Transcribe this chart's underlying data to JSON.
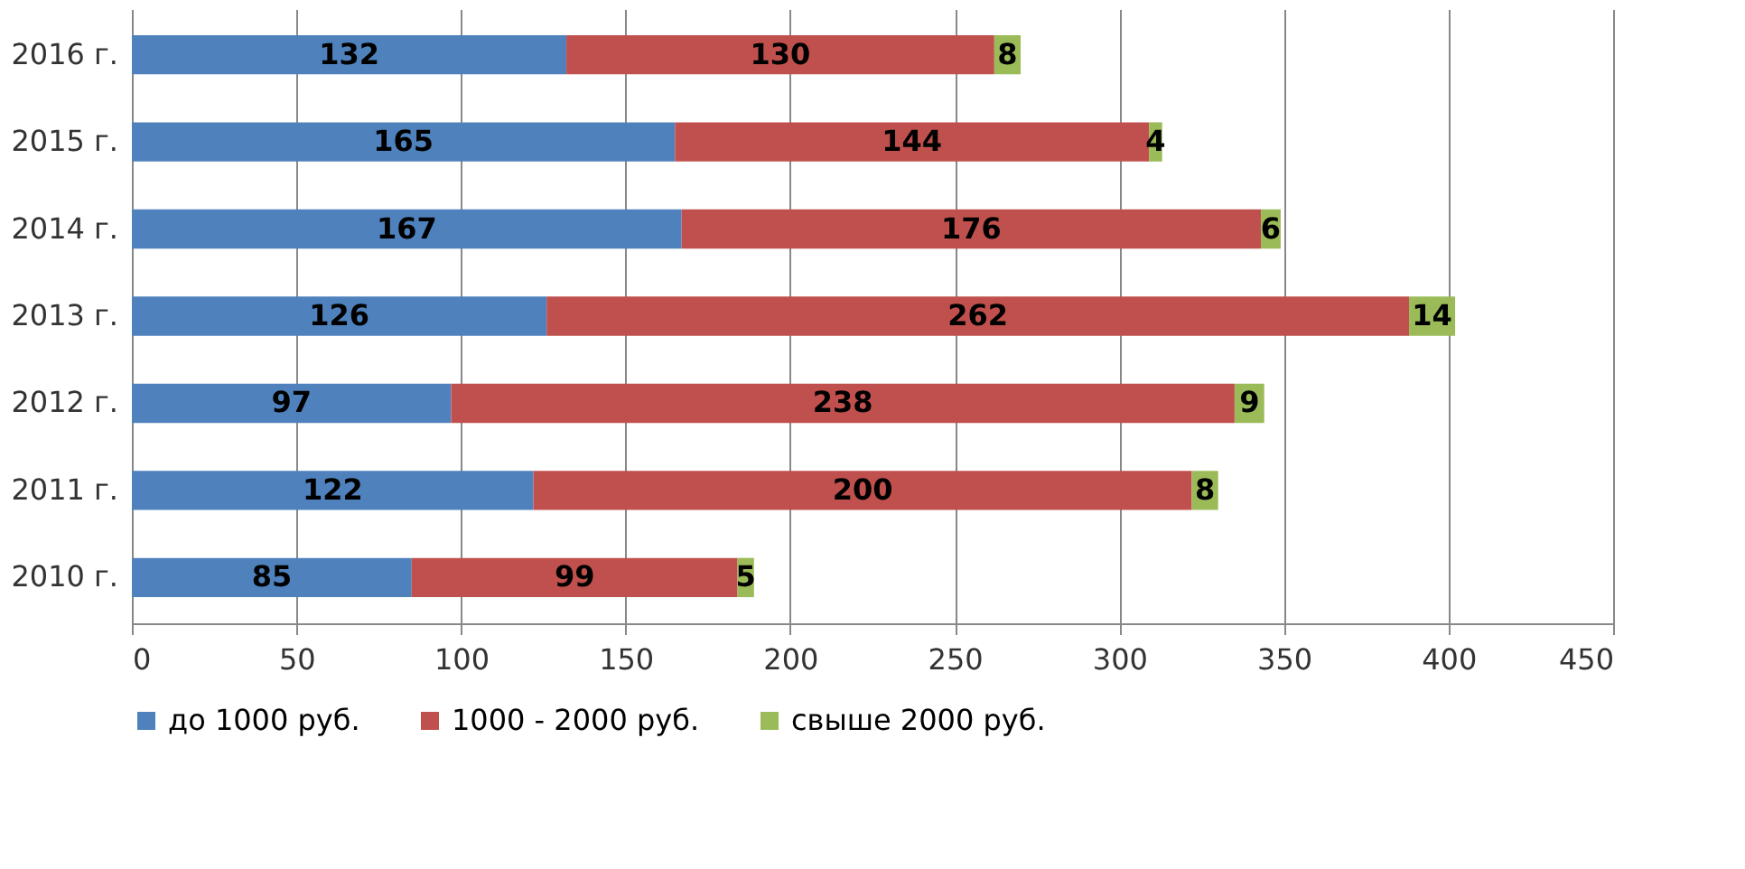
{
  "chart_data": {
    "type": "bar",
    "orientation": "horizontal",
    "stacked": true,
    "categories": [
      "2016 г.",
      "2015 г.",
      "2014 г.",
      "2013 г.",
      "2012 г.",
      "2011 г.",
      "2010 г."
    ],
    "series": [
      {
        "name": "до 1000 руб.",
        "color": "#4f81bd",
        "values": [
          132,
          165,
          167,
          126,
          97,
          122,
          85
        ]
      },
      {
        "name": "1000 - 2000 руб.",
        "color": "#c0504d",
        "values": [
          130,
          144,
          176,
          262,
          238,
          200,
          99
        ]
      },
      {
        "name": "свыше 2000 руб.",
        "color": "#9bbb59",
        "values": [
          8,
          4,
          6,
          14,
          9,
          8,
          5
        ]
      }
    ],
    "xlim": [
      0,
      450
    ],
    "xticks": [
      0,
      50,
      100,
      150,
      200,
      250,
      300,
      350,
      400,
      450
    ],
    "grid": "x",
    "legend": "bottom",
    "data_labels": true
  }
}
